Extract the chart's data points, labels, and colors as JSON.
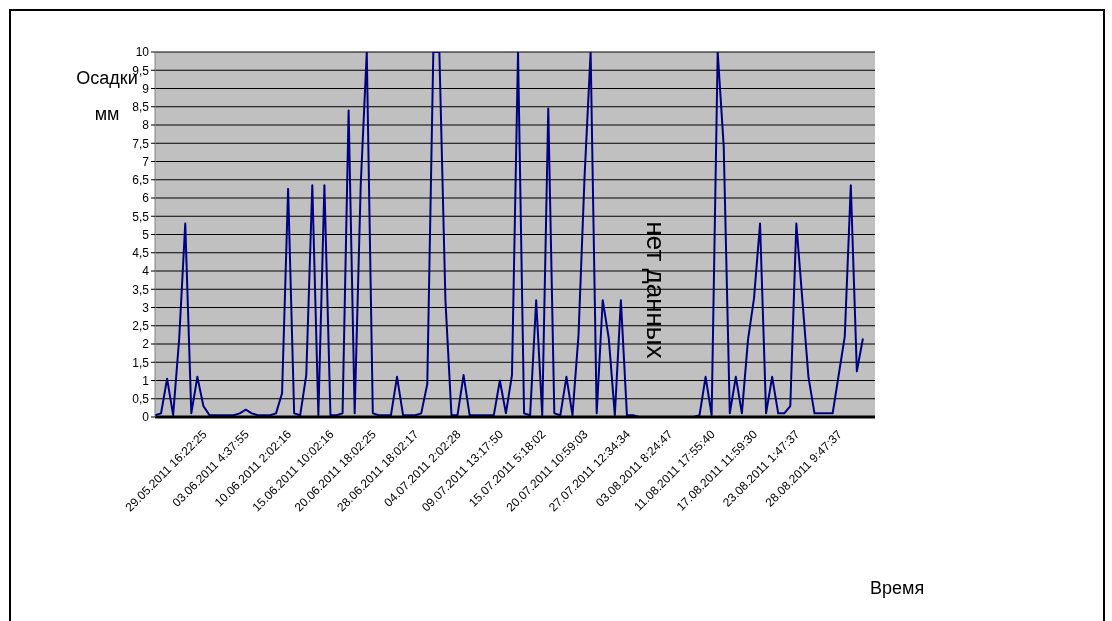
{
  "chart_data": {
    "type": "line",
    "xlabel": "Время",
    "ylabel": "Осадки мм",
    "annotations": [
      "нет данных"
    ],
    "categories": [
      null,
      null,
      null,
      null,
      null,
      null,
      null,
      null,
      "29.05.2011 16:22:25",
      null,
      null,
      null,
      null,
      null,
      null,
      "03.06.2011 4:37:55",
      null,
      null,
      null,
      null,
      null,
      null,
      "10.06.2011 2:02:16",
      null,
      null,
      null,
      null,
      null,
      null,
      "15.06.2011 10:02:16",
      null,
      null,
      null,
      null,
      null,
      null,
      "20.06.2011 18:02:25",
      null,
      null,
      null,
      null,
      null,
      null,
      "28.06.2011 18:02:17",
      null,
      null,
      null,
      null,
      null,
      null,
      "04.07.2011 2:02:28",
      null,
      null,
      null,
      null,
      null,
      null,
      "09.07.2011 13:17:50",
      null,
      null,
      null,
      null,
      null,
      null,
      "15.07.2011 5:18:02",
      null,
      null,
      null,
      null,
      null,
      null,
      "20.07.2011 10:59:03",
      null,
      null,
      null,
      null,
      null,
      null,
      "27.07.2011 12:34:34",
      null,
      null,
      null,
      null,
      null,
      null,
      "03.08.2011 8:24:47",
      null,
      null,
      null,
      null,
      null,
      null,
      "11.08.2011 17:55:40",
      null,
      null,
      null,
      null,
      null,
      null,
      "17.08.2011 11:59:30",
      null,
      null,
      null,
      null,
      null,
      null,
      "23.08.2011 1:47:37",
      null,
      null,
      null,
      null,
      null,
      null,
      "28.08.2011 9:47:37",
      null,
      null,
      null,
      null,
      null,
      null
    ],
    "series": [
      {
        "color": "#000080",
        "values": [
          0.05,
          0.1,
          1.05,
          0.05,
          2.15,
          5.3,
          0.1,
          1.1,
          0.3,
          0.05,
          0.05,
          0.05,
          0.05,
          0.05,
          0.1,
          0.2,
          0.1,
          0.05,
          0.05,
          0.05,
          0.1,
          0.65,
          6.25,
          0.1,
          0.05,
          1.15,
          6.35,
          0.05,
          6.35,
          0.05,
          0.05,
          0.1,
          8.4,
          0.1,
          6.35,
          10,
          0.1,
          0.05,
          0.05,
          0.05,
          1.1,
          0.05,
          0.05,
          0.05,
          0.1,
          0.9,
          10,
          10,
          3.2,
          0.05,
          0.05,
          1.15,
          0.05,
          0.05,
          0.05,
          0.05,
          0.05,
          1,
          0.1,
          1.15,
          10,
          0.1,
          0.05,
          3.2,
          0.05,
          8.45,
          0.1,
          0.05,
          1.1,
          0.05,
          2.25,
          6.6,
          10,
          0.1,
          3.2,
          2.15,
          0.05,
          3.2,
          0.05,
          0.05,
          0,
          0,
          0,
          0,
          0,
          0,
          0,
          0,
          0,
          0,
          0.05,
          1.1,
          0.05,
          10,
          7.4,
          0.1,
          1.1,
          0.1,
          2.1,
          3.25,
          5.3,
          0.1,
          1.1,
          0.1,
          0.1,
          0.3,
          5.3,
          3.2,
          1.1,
          0.1,
          0.1,
          0.1,
          0.1,
          1.15,
          2.2,
          6.35,
          1.25,
          2.15,
          null,
          null
        ]
      }
    ],
    "ylim": [
      0,
      10
    ],
    "yticks": [
      0,
      {
        "value": 0.5,
        "label": "0,5"
      },
      1,
      {
        "value": 1.5,
        "label": "1,5"
      },
      2,
      {
        "value": 2.5,
        "label": "2,5"
      },
      3,
      {
        "value": 3.5,
        "label": "3,5"
      },
      4,
      {
        "value": 4.5,
        "label": "4,5"
      },
      5,
      {
        "value": 5.5,
        "label": "5,5"
      },
      6,
      {
        "value": 6.5,
        "label": "6,5"
      },
      7,
      {
        "value": 7.5,
        "label": "7,5"
      },
      8,
      {
        "value": 8.5,
        "label": "8,5"
      },
      9,
      {
        "value": 9.5,
        "label": "9,5"
      },
      10
    ],
    "grid": "y",
    "marker": "none",
    "line_style": "solid"
  }
}
